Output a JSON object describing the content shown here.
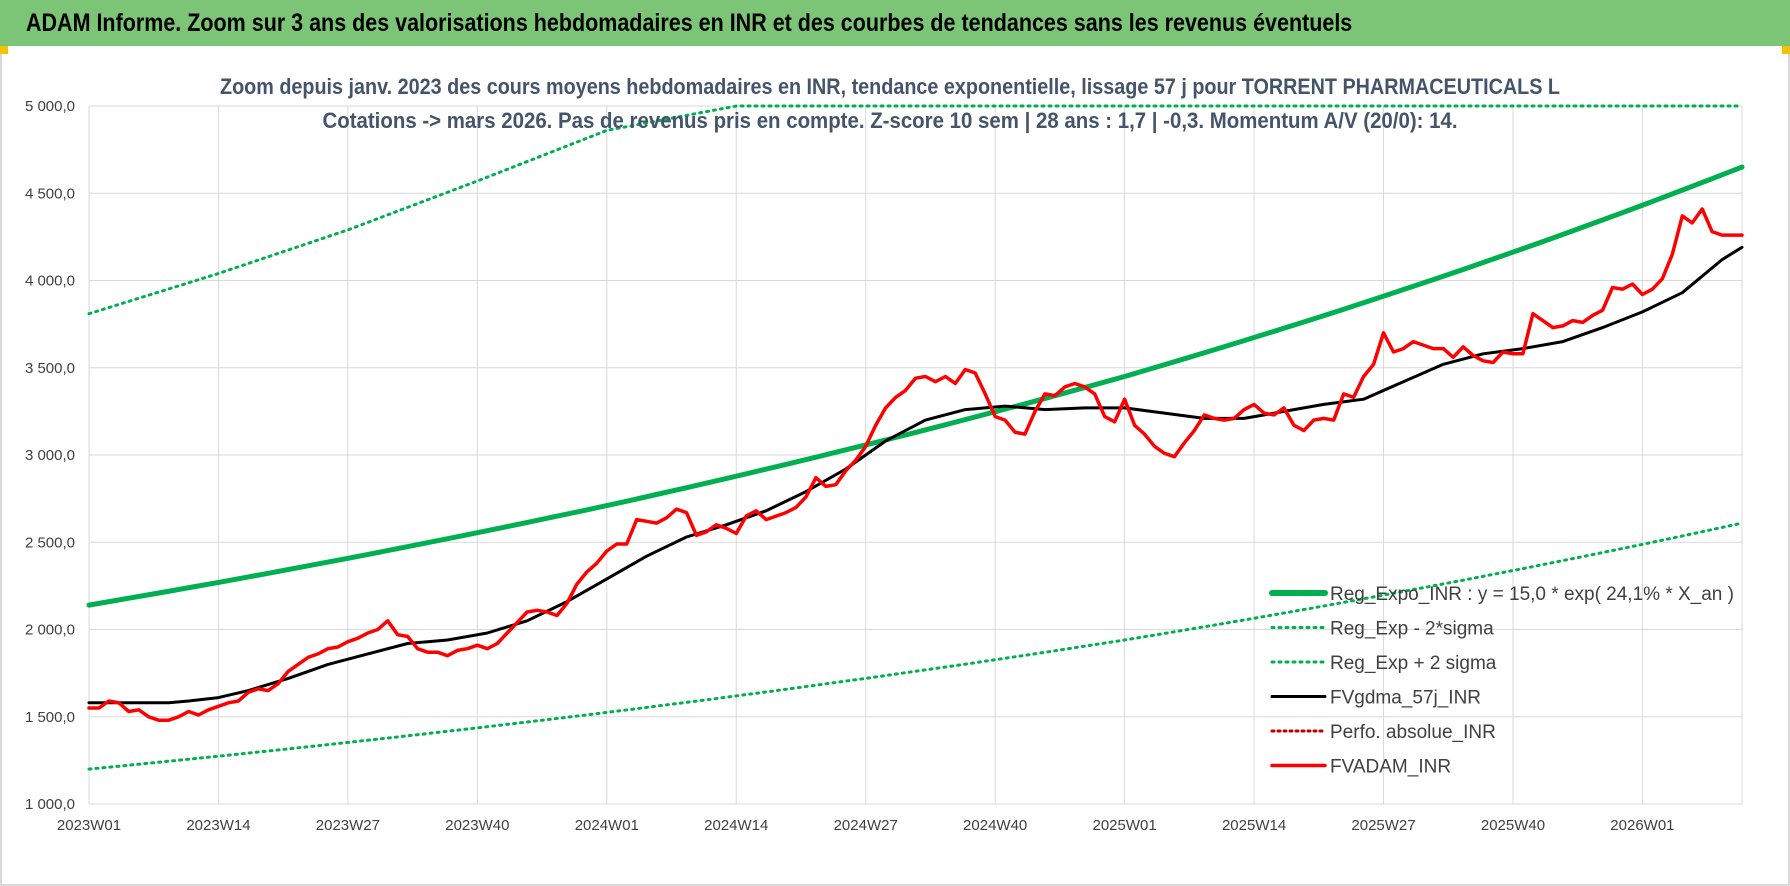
{
  "header": {
    "title": "ADAM Informe. Zoom sur 3 ans des valorisations hebdomadaires en INR et des courbes de tendances sans les revenus éventuels"
  },
  "colors": {
    "header_bg": "#7cc576",
    "reg_expo": "#00b050",
    "sigma": "#00b050",
    "fvgdma": "#000000",
    "perfo": "#c00000",
    "fvadam": "#ff0000",
    "grid": "#d9d9d9"
  },
  "chart_data": {
    "type": "line",
    "title_line1": "Zoom depuis janv. 2023 des cours moyens hebdomadaires en INR, tendance exponentielle, lissage 57 j pour TORRENT PHARMACEUTICALS L",
    "title_line2": "Cotations -> mars 2026. Pas de revenus pris en compte. Z-score 10 sem | 28 ans : 1,7 | -0,3. Momentum A/V (20/0): 14.",
    "x_tick_labels": [
      "2023W01",
      "2023W14",
      "2023W27",
      "2023W40",
      "2024W01",
      "2024W14",
      "2024W27",
      "2024W40",
      "2025W01",
      "2025W14",
      "2025W27",
      "2025W40",
      "2026W01"
    ],
    "x_range_weeks": [
      0,
      166
    ],
    "y_tick_labels": [
      "1 000,0",
      "1 500,0",
      "2 000,0",
      "2 500,0",
      "3 000,0",
      "3 500,0",
      "4 000,0",
      "4 500,0",
      "5 000,0"
    ],
    "ylim": [
      1000,
      5000
    ],
    "grid": true,
    "legend_placement": "bottom-right",
    "series": [
      {
        "name": "Reg_Expo_INR : y = 15,0 * exp( 24,1% *  X_an )",
        "style": "solid-thick",
        "x": [
          0,
          52,
          104,
          166
        ],
        "values": [
          2140,
          2710,
          3450,
          4650
        ]
      },
      {
        "name": "Reg_Exp - 2*sigma",
        "style": "dotted",
        "x": [
          0,
          52,
          104,
          166
        ],
        "values": [
          1200,
          1525,
          1940,
          2610
        ]
      },
      {
        "name": "Reg_Exp + 2 sigma",
        "style": "dotted",
        "x": [
          0,
          13,
          26,
          39,
          52,
          65,
          78,
          91,
          104,
          117,
          130,
          143,
          166
        ],
        "values": [
          3810,
          4040,
          4290,
          4570,
          4860,
          5000,
          5000,
          5000,
          5000,
          5000,
          5000,
          5000,
          5000
        ]
      },
      {
        "name": "FVgdma_57j_INR",
        "style": "solid",
        "x": [
          0,
          5,
          8,
          10,
          13,
          16,
          20,
          24,
          28,
          32,
          36,
          40,
          44,
          48,
          52,
          56,
          60,
          64,
          68,
          72,
          76,
          80,
          84,
          88,
          92,
          96,
          100,
          104,
          108,
          112,
          116,
          120,
          124,
          128,
          132,
          136,
          140,
          144,
          148,
          152,
          156,
          160,
          164,
          166
        ],
        "values": [
          1580,
          1580,
          1580,
          1590,
          1610,
          1650,
          1720,
          1800,
          1860,
          1920,
          1940,
          1980,
          2050,
          2160,
          2290,
          2420,
          2530,
          2600,
          2680,
          2790,
          2920,
          3080,
          3200,
          3260,
          3280,
          3260,
          3270,
          3270,
          3240,
          3210,
          3210,
          3250,
          3290,
          3320,
          3420,
          3520,
          3580,
          3610,
          3650,
          3730,
          3820,
          3930,
          4120,
          4190
        ]
      },
      {
        "name": "Perfo. absolue_INR",
        "style": "dotted-dark-red",
        "x": [],
        "values": []
      },
      {
        "name": "FVADAM_INR",
        "style": "solid-thick",
        "x": [
          0,
          1,
          2,
          3,
          4,
          5,
          6,
          7,
          8,
          9,
          10,
          11,
          12,
          13,
          14,
          15,
          16,
          17,
          18,
          19,
          20,
          21,
          22,
          23,
          24,
          25,
          26,
          27,
          28,
          29,
          30,
          31,
          32,
          33,
          34,
          35,
          36,
          37,
          38,
          39,
          40,
          41,
          42,
          43,
          44,
          45,
          46,
          47,
          48,
          49,
          50,
          51,
          52,
          53,
          54,
          55,
          56,
          57,
          58,
          59,
          60,
          61,
          62,
          63,
          64,
          65,
          66,
          67,
          68,
          69,
          70,
          71,
          72,
          73,
          74,
          75,
          76,
          77,
          78,
          79,
          80,
          81,
          82,
          83,
          84,
          85,
          86,
          87,
          88,
          89,
          90,
          91,
          92,
          93,
          94,
          95,
          96,
          97,
          98,
          99,
          100,
          101,
          102,
          103,
          104,
          105,
          106,
          107,
          108,
          109,
          110,
          111,
          112,
          113,
          114,
          115,
          116,
          117,
          118,
          119,
          120,
          121,
          122,
          123,
          124,
          125,
          126,
          127,
          128,
          129,
          130,
          131,
          132,
          133,
          134,
          135,
          136,
          137,
          138,
          139,
          140,
          141,
          142,
          143,
          144,
          145,
          146,
          147,
          148,
          149,
          150,
          151,
          152,
          153,
          154,
          155,
          156,
          157,
          158,
          159,
          160,
          161,
          162,
          163,
          164,
          165,
          166
        ],
        "values": [
          1550,
          1550,
          1590,
          1580,
          1530,
          1540,
          1500,
          1480,
          1480,
          1500,
          1530,
          1510,
          1540,
          1560,
          1580,
          1590,
          1640,
          1660,
          1650,
          1690,
          1760,
          1800,
          1840,
          1860,
          1890,
          1900,
          1930,
          1950,
          1980,
          2000,
          2050,
          1970,
          1960,
          1890,
          1870,
          1870,
          1850,
          1880,
          1890,
          1910,
          1890,
          1920,
          1980,
          2040,
          2100,
          2110,
          2100,
          2080,
          2150,
          2260,
          2330,
          2380,
          2450,
          2490,
          2490,
          2630,
          2620,
          2610,
          2640,
          2690,
          2670,
          2540,
          2560,
          2600,
          2580,
          2550,
          2650,
          2680,
          2630,
          2650,
          2670,
          2700,
          2760,
          2870,
          2820,
          2830,
          2910,
          2970,
          3050,
          3170,
          3270,
          3330,
          3370,
          3440,
          3450,
          3420,
          3450,
          3410,
          3490,
          3470,
          3350,
          3220,
          3200,
          3130,
          3120,
          3250,
          3350,
          3340,
          3390,
          3410,
          3390,
          3350,
          3220,
          3190,
          3320,
          3170,
          3120,
          3050,
          3010,
          2990,
          3070,
          3140,
          3230,
          3210,
          3200,
          3210,
          3260,
          3290,
          3240,
          3230,
          3270,
          3170,
          3140,
          3200,
          3210,
          3200,
          3350,
          3330,
          3450,
          3520,
          3700,
          3590,
          3610,
          3650,
          3630,
          3610,
          3610,
          3560,
          3620,
          3570,
          3540,
          3530,
          3590,
          3580,
          3580,
          3810,
          3770,
          3730,
          3740,
          3770,
          3760,
          3800,
          3830,
          3960,
          3950,
          3980,
          3920,
          3950,
          4010,
          4150,
          4370,
          4330,
          4410,
          4280,
          4260,
          4260,
          4260
        ]
      }
    ]
  }
}
